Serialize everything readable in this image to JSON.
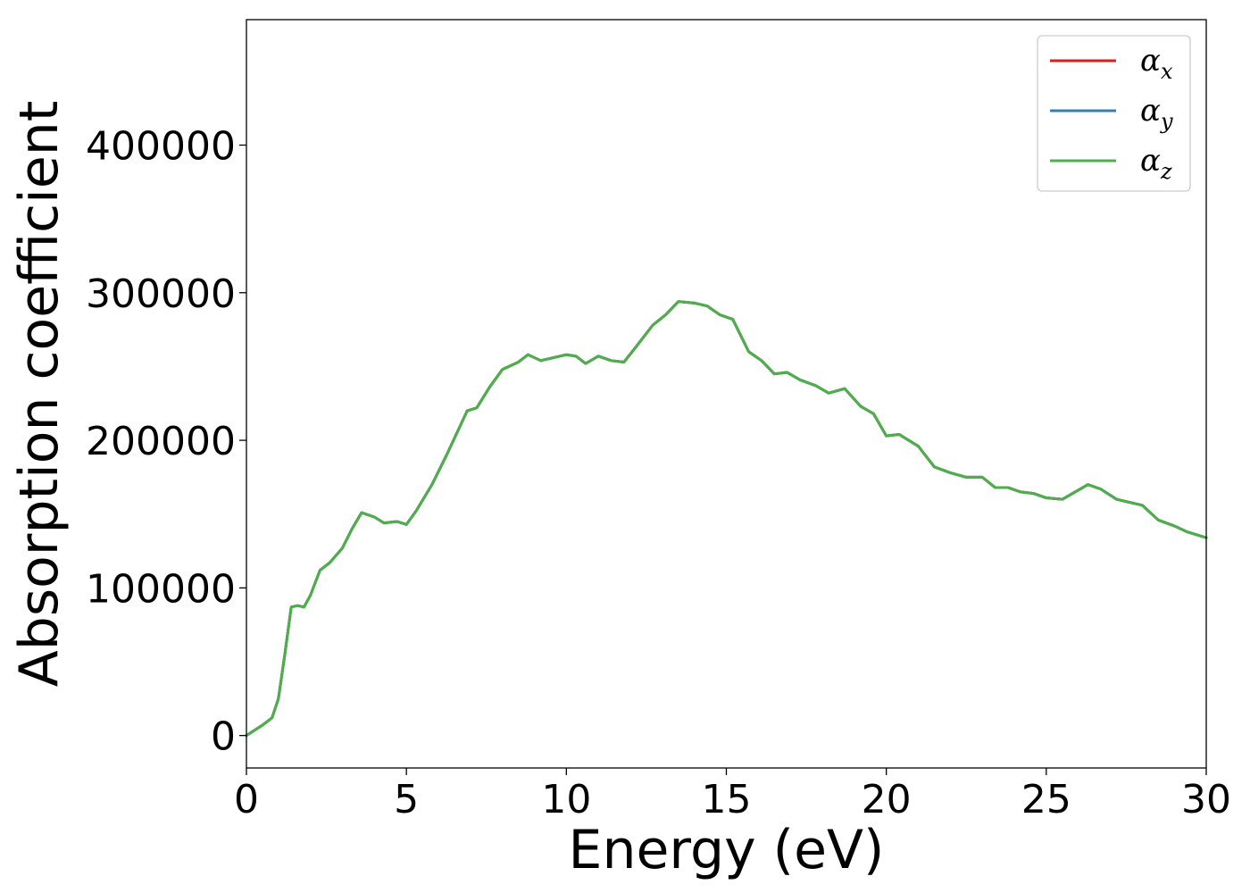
{
  "chart_data": {
    "type": "line",
    "title": "",
    "xlabel": "Energy (eV)",
    "ylabel": "Absorption coefficient",
    "xlim": [
      0,
      30
    ],
    "ylim": [
      -22000,
      485000
    ],
    "xticks": [
      0,
      5,
      10,
      15,
      20,
      25,
      30
    ],
    "xtick_labels": [
      "0",
      "5",
      "10",
      "15",
      "20",
      "25",
      "30"
    ],
    "yticks": [
      0,
      100000,
      200000,
      300000,
      400000
    ],
    "ytick_labels": [
      "0",
      "100000",
      "200000",
      "300000",
      "400000"
    ],
    "grid": false,
    "legend": {
      "placement": "top-right",
      "entries": [
        {
          "label": "α",
          "sub": "x",
          "color": "#e41a1c"
        },
        {
          "label": "α",
          "sub": "y",
          "color": "#377eb8"
        },
        {
          "label": "α",
          "sub": "z",
          "color": "#4daf4a"
        }
      ]
    },
    "x": [
      0,
      0.5,
      0.8,
      1.0,
      1.2,
      1.4,
      1.6,
      1.8,
      2.0,
      2.3,
      2.6,
      3.0,
      3.3,
      3.6,
      4.0,
      4.3,
      4.7,
      5.0,
      5.3,
      5.8,
      6.3,
      6.9,
      7.2,
      7.6,
      8.0,
      8.5,
      8.8,
      9.2,
      9.6,
      10.0,
      10.3,
      10.6,
      11.0,
      11.4,
      11.8,
      12.2,
      12.7,
      13.1,
      13.5,
      14.0,
      14.4,
      14.8,
      15.2,
      15.7,
      16.1,
      16.5,
      16.9,
      17.3,
      17.8,
      18.2,
      18.7,
      19.2,
      19.6,
      20.0,
      20.4,
      21.0,
      21.5,
      22.0,
      22.5,
      23.0,
      23.4,
      23.8,
      24.2,
      24.6,
      25.0,
      25.5,
      25.9,
      26.3,
      26.7,
      27.2,
      27.6,
      28.0,
      28.5,
      29.0,
      29.4,
      29.7,
      30.0
    ],
    "series": [
      {
        "name": "α_x",
        "color": "#e41a1c",
        "values": [
          0,
          7000,
          12000,
          25000,
          55000,
          87000,
          88000,
          87000,
          95000,
          112000,
          117000,
          127000,
          140000,
          151000,
          148000,
          144000,
          145000,
          143000,
          152000,
          170000,
          192000,
          220000,
          222000,
          236000,
          248000,
          253000,
          258000,
          254000,
          256000,
          258000,
          257000,
          252000,
          257000,
          254000,
          253000,
          264000,
          278000,
          285000,
          294000,
          293000,
          291000,
          285000,
          282000,
          260000,
          254000,
          245000,
          246000,
          241000,
          237000,
          232000,
          235000,
          223000,
          218000,
          203000,
          204000,
          196000,
          182000,
          178000,
          175000,
          175000,
          168000,
          168000,
          165000,
          164000,
          161000,
          160000,
          165000,
          170000,
          167000,
          160000,
          158000,
          156000,
          146000,
          142000,
          138000,
          136000,
          134000
        ]
      },
      {
        "name": "α_y",
        "color": "#377eb8",
        "values": [
          0,
          7000,
          12000,
          25000,
          55000,
          87000,
          88000,
          87000,
          95000,
          112000,
          117000,
          127000,
          140000,
          151000,
          148000,
          144000,
          145000,
          143000,
          152000,
          170000,
          192000,
          220000,
          222000,
          236000,
          248000,
          253000,
          258000,
          254000,
          256000,
          258000,
          257000,
          252000,
          257000,
          254000,
          253000,
          264000,
          278000,
          285000,
          294000,
          293000,
          291000,
          285000,
          282000,
          260000,
          254000,
          245000,
          246000,
          241000,
          237000,
          232000,
          235000,
          223000,
          218000,
          203000,
          204000,
          196000,
          182000,
          178000,
          175000,
          175000,
          168000,
          168000,
          165000,
          164000,
          161000,
          160000,
          165000,
          170000,
          167000,
          160000,
          158000,
          156000,
          146000,
          142000,
          138000,
          136000,
          134000
        ]
      },
      {
        "name": "α_z",
        "color": "#4daf4a",
        "values": [
          0,
          7000,
          12000,
          25000,
          55000,
          87000,
          88000,
          87000,
          95000,
          112000,
          117000,
          127000,
          140000,
          151000,
          148000,
          144000,
          145000,
          143000,
          152000,
          170000,
          192000,
          220000,
          222000,
          236000,
          248000,
          253000,
          258000,
          254000,
          256000,
          258000,
          257000,
          252000,
          257000,
          254000,
          253000,
          264000,
          278000,
          285000,
          294000,
          293000,
          291000,
          285000,
          282000,
          260000,
          254000,
          245000,
          246000,
          241000,
          237000,
          232000,
          235000,
          223000,
          218000,
          203000,
          204000,
          196000,
          182000,
          178000,
          175000,
          175000,
          168000,
          168000,
          165000,
          164000,
          161000,
          160000,
          165000,
          170000,
          167000,
          160000,
          158000,
          156000,
          146000,
          142000,
          138000,
          136000,
          134000
        ]
      }
    ]
  }
}
